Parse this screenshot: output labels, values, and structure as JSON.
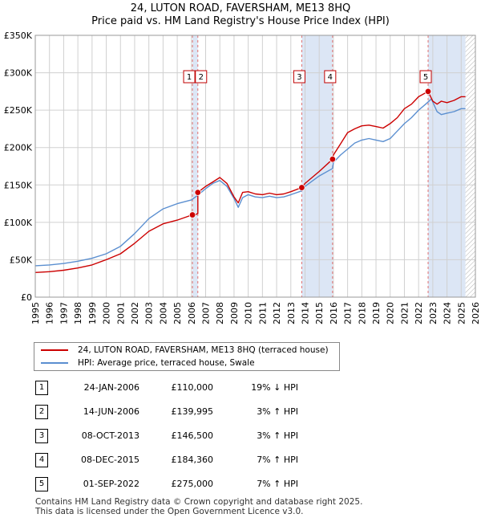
{
  "title_line1": "24, LUTON ROAD, FAVERSHAM, ME13 8HQ",
  "title_line2": "Price paid vs. HM Land Registry's House Price Index (HPI)",
  "legend": {
    "property": "24, LUTON ROAD, FAVERSHAM, ME13 8HQ (terraced house)",
    "hpi": "HPI: Average price, terraced house, Swale"
  },
  "transactions": [
    {
      "num": "1",
      "date": "24-JAN-2006",
      "price": "£110,000",
      "hpi": "19% ↓ HPI"
    },
    {
      "num": "2",
      "date": "14-JUN-2006",
      "price": "£139,995",
      "hpi": "3% ↑ HPI"
    },
    {
      "num": "3",
      "date": "08-OCT-2013",
      "price": "£146,500",
      "hpi": "3% ↑ HPI"
    },
    {
      "num": "4",
      "date": "08-DEC-2015",
      "price": "£184,360",
      "hpi": "7% ↑ HPI"
    },
    {
      "num": "5",
      "date": "01-SEP-2022",
      "price": "£275,000",
      "hpi": "7% ↑ HPI"
    }
  ],
  "footer_line1": "Contains HM Land Registry data © Crown copyright and database right 2025.",
  "footer_line2": "This data is licensed under the Open Government Licence v3.0.",
  "colors": {
    "property_line": "#cc0000",
    "hpi_line": "#5b8fd0",
    "shade": "#dce6f5",
    "grid": "#d0d0d0",
    "marker_vline": "#e07070"
  },
  "chart_data": {
    "type": "line",
    "title": "24, LUTON ROAD, FAVERSHAM, ME13 8HQ — Price paid vs. HM Land Registry's House Price Index (HPI)",
    "xlabel": "",
    "ylabel": "",
    "xlim": [
      1995,
      2026
    ],
    "ylim": [
      0,
      350000
    ],
    "x_ticks": [
      1995,
      1996,
      1997,
      1998,
      1999,
      2000,
      2001,
      2002,
      2003,
      2004,
      2005,
      2006,
      2007,
      2008,
      2009,
      2010,
      2011,
      2012,
      2013,
      2014,
      2015,
      2016,
      2017,
      2018,
      2019,
      2020,
      2021,
      2022,
      2023,
      2024,
      2025,
      2026
    ],
    "y_ticks": [
      0,
      50000,
      100000,
      150000,
      200000,
      250000,
      300000,
      350000
    ],
    "y_tick_labels": [
      "£0",
      "£50K",
      "£100K",
      "£150K",
      "£200K",
      "£250K",
      "£300K",
      "£350K"
    ],
    "grid": true,
    "shaded_spans": [
      [
        2006.07,
        2006.45
      ],
      [
        2013.77,
        2015.94
      ],
      [
        2022.67,
        2025.3
      ]
    ],
    "hatched_from": 2025.3,
    "series": [
      {
        "name": "24, LUTON ROAD, FAVERSHAM, ME13 8HQ (terraced house)",
        "x": [
          1995,
          1996,
          1997,
          1998,
          1999,
          2000,
          2001,
          2002,
          2003,
          2004,
          2005,
          2006.07,
          2006.07,
          2006.45,
          2006.45,
          2007,
          2007.5,
          2008,
          2008.5,
          2009,
          2009.3,
          2009.6,
          2010,
          2010.5,
          2011,
          2011.5,
          2012,
          2012.5,
          2013,
          2013.77,
          2014,
          2014.5,
          2015,
          2015.94,
          2016,
          2016.5,
          2017,
          2017.5,
          2018,
          2018.5,
          2019,
          2019.5,
          2020,
          2020.5,
          2021,
          2021.5,
          2022,
          2022.67,
          2023,
          2023.3,
          2023.6,
          2024,
          2024.5,
          2025,
          2025.3
        ],
        "y": [
          33000,
          34000,
          36000,
          39000,
          43000,
          50000,
          58000,
          72000,
          88000,
          98000,
          103000,
          110000,
          108000,
          112000,
          139995,
          148000,
          154000,
          160000,
          152000,
          134000,
          126000,
          140000,
          141000,
          138000,
          137000,
          139000,
          137000,
          138000,
          141000,
          146500,
          152000,
          160000,
          168000,
          184360,
          190000,
          205000,
          220000,
          225000,
          229000,
          230000,
          228000,
          226000,
          232000,
          240000,
          252000,
          258000,
          268000,
          275000,
          262000,
          258000,
          262000,
          260000,
          263000,
          268000,
          268000
        ]
      },
      {
        "name": "HPI: Average price, terraced house, Swale",
        "x": [
          1995,
          1996,
          1997,
          1998,
          1999,
          2000,
          2001,
          2002,
          2003,
          2004,
          2005,
          2006,
          2006.5,
          2007,
          2007.5,
          2008,
          2008.5,
          2009,
          2009.3,
          2009.6,
          2010,
          2010.5,
          2011,
          2011.5,
          2012,
          2012.5,
          2013,
          2013.77,
          2014,
          2014.5,
          2015,
          2015.94,
          2016,
          2016.5,
          2017,
          2017.5,
          2018,
          2018.5,
          2019,
          2019.5,
          2020,
          2020.5,
          2021,
          2021.5,
          2022,
          2022.5,
          2022.9,
          2023.3,
          2023.6,
          2024,
          2024.5,
          2025,
          2025.3
        ],
        "y": [
          42000,
          43000,
          45000,
          48000,
          52000,
          58000,
          68000,
          85000,
          105000,
          118000,
          125000,
          130000,
          137000,
          145000,
          152000,
          156000,
          148000,
          132000,
          120000,
          133000,
          137000,
          134000,
          133000,
          135000,
          133000,
          134000,
          137000,
          142000,
          148000,
          155000,
          162000,
          172000,
          180000,
          190000,
          198000,
          206000,
          210000,
          212000,
          210000,
          208000,
          212000,
          222000,
          232000,
          240000,
          250000,
          258000,
          265000,
          248000,
          244000,
          246000,
          248000,
          252000,
          252000
        ]
      }
    ],
    "markers": [
      {
        "label": "1",
        "x": 2006.07,
        "y": 110000
      },
      {
        "label": "2",
        "x": 2006.45,
        "y": 139995
      },
      {
        "label": "3",
        "x": 2013.77,
        "y": 146500
      },
      {
        "label": "4",
        "x": 2015.94,
        "y": 184360
      },
      {
        "label": "5",
        "x": 2022.67,
        "y": 275000
      }
    ]
  }
}
